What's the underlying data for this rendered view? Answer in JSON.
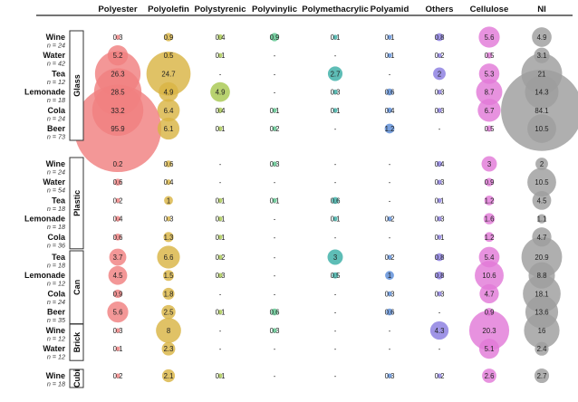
{
  "chart_data": {
    "type": "table",
    "title": "",
    "columns": [
      "Polyester",
      "Polyolefin",
      "Polystyrenic",
      "Polyvinylic",
      "Polymethacrylic",
      "Polyamid",
      "Others",
      "Cellulose",
      "NI"
    ],
    "column_colors": [
      "#f08080",
      "#d9b444",
      "#a8c850",
      "#5cc48e",
      "#3aaea6",
      "#5a8cd8",
      "#8a7ce0",
      "#e27ad8",
      "#9e9e9e"
    ],
    "groups": [
      {
        "name": "Glass",
        "rows": [
          {
            "label": "Wine",
            "n": "n = 24",
            "cells": [
              "0.3",
              "0.9",
              "0.4",
              "0.9",
              "0.1",
              "0.1",
              "0.8",
              "5.6",
              "4.9"
            ]
          },
          {
            "label": "Water",
            "n": "n = 42",
            "cells": [
              "5.2",
              "0.5",
              "0.1",
              "-",
              "-",
              "0.1",
              "0.2",
              "0.5",
              "3.1"
            ]
          },
          {
            "label": "Tea",
            "n": "n = 12",
            "cells": [
              "26.3",
              "24.7",
              "-",
              "-",
              "2.7",
              "-",
              "2",
              "5.3",
              "21"
            ]
          },
          {
            "label": "Lemonade",
            "n": "n = 18",
            "cells": [
              "28.5",
              "4.9",
              "4.9",
              "-",
              "0.3",
              "0.6",
              "0.3",
              "8.7",
              "14.3"
            ]
          },
          {
            "label": "Cola",
            "n": "n = 24",
            "cells": [
              "33.2",
              "6.4",
              "0.4",
              "0.1",
              "0.1",
              "0.4",
              "0.3",
              "6.7",
              "84.1"
            ]
          },
          {
            "label": "Beer",
            "n": "n = 73",
            "cells": [
              "95.9",
              "6.1",
              "0.1",
              "0.2",
              "-",
              "1.2",
              "-",
              "0.5",
              "10.5"
            ]
          }
        ]
      },
      {
        "name": "Plastic",
        "rows": [
          {
            "label": "Wine",
            "n": "n = 24",
            "cells": [
              "0.2",
              "0.6",
              "-",
              "0.3",
              "-",
              "-",
              "0.4",
              "3",
              "2"
            ]
          },
          {
            "label": "Water",
            "n": "n = 54",
            "cells": [
              "0.6",
              "0.4",
              "-",
              "-",
              "-",
              "-",
              "0.3",
              "0.9",
              "10.5"
            ]
          },
          {
            "label": "Tea",
            "n": "n = 18",
            "cells": [
              "0.2",
              "1",
              "0.1",
              "0.1",
              "0.6",
              "-",
              "0.1",
              "1.2",
              "4.5"
            ]
          },
          {
            "label": "Lemonade",
            "n": "n = 18",
            "cells": [
              "0.4",
              "0.3",
              "0.1",
              "-",
              "0.1",
              "0.2",
              "0.3",
              "1.6",
              "1.1"
            ]
          },
          {
            "label": "Cola",
            "n": "n = 36",
            "cells": [
              "0.6",
              "1.3",
              "0.1",
              "-",
              "-",
              "-",
              "0.1",
              "1.2",
              "4.7"
            ]
          }
        ]
      },
      {
        "name": "Can",
        "rows": [
          {
            "label": "Tea",
            "n": "n = 18",
            "cells": [
              "3.7",
              "6.6",
              "0.2",
              "-",
              "3",
              "0.2",
              "0.8",
              "5.4",
              "20.9"
            ]
          },
          {
            "label": "Lemonade",
            "n": "n = 12",
            "cells": [
              "4.5",
              "1.5",
              "0.3",
              "-",
              "0.5",
              "1",
              "0.8",
              "10.6",
              "8.8"
            ]
          },
          {
            "label": "Cola",
            "n": "n = 24",
            "cells": [
              "0.9",
              "1.8",
              "-",
              "-",
              "-",
              "0.3",
              "0.3",
              "4.7",
              "18.1"
            ]
          },
          {
            "label": "Beer",
            "n": "n = 35",
            "cells": [
              "5.6",
              "2.5",
              "0.1",
              "0.6",
              "-",
              "0.6",
              "-",
              "0.9",
              "13.6"
            ]
          }
        ]
      },
      {
        "name": "Brick",
        "rows": [
          {
            "label": "Wine",
            "n": "n = 12",
            "cells": [
              "0.3",
              "8",
              "-",
              "0.3",
              "-",
              "-",
              "4.3",
              "20.3",
              "16"
            ]
          },
          {
            "label": "Water",
            "n": "n = 12",
            "cells": [
              "0.1",
              "2.3",
              "-",
              "-",
              "-",
              "-",
              "-",
              "5.1",
              "2.4"
            ]
          }
        ]
      },
      {
        "name": "Cubi",
        "rows": [
          {
            "label": "Wine",
            "n": "n = 18",
            "cells": [
              "0.2",
              "2.1",
              "0.1",
              "-",
              "-",
              "0.3",
              "0.2",
              "2.6",
              "2.7"
            ]
          }
        ]
      }
    ]
  }
}
